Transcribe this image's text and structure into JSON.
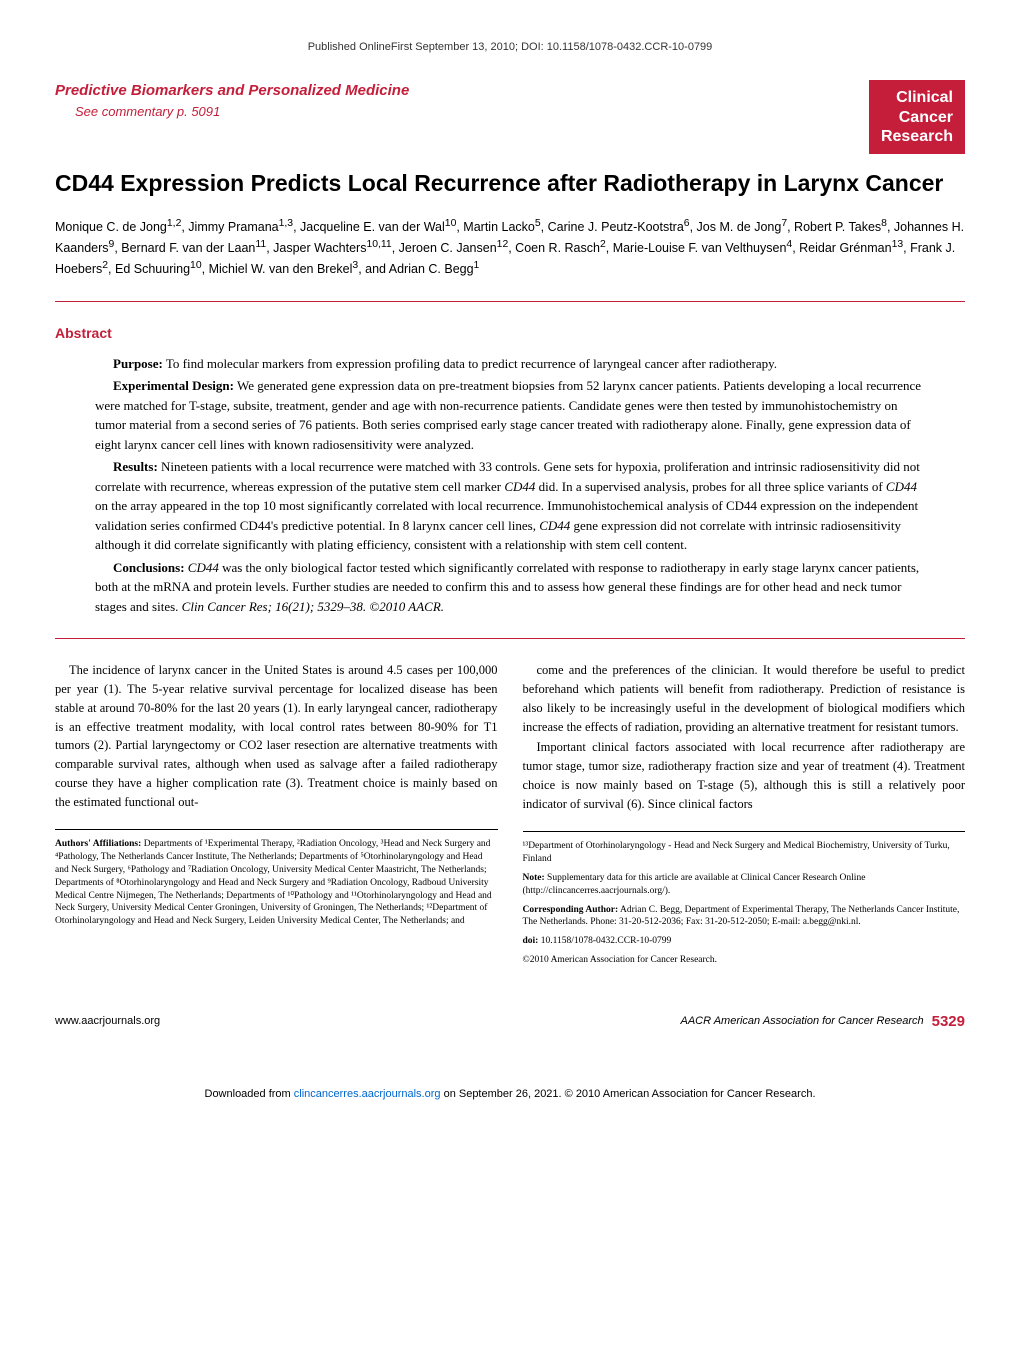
{
  "topline": "Published OnlineFirst September 13, 2010; DOI: 10.1158/1078-0432.CCR-10-0799",
  "section": {
    "label": "Predictive Biomarkers and Personalized Medicine",
    "commentary": "See commentary p. 5091"
  },
  "badge": {
    "l1": "Clinical",
    "l2": "Cancer",
    "l3": "Research"
  },
  "title": "CD44 Expression Predicts Local Recurrence after Radiotherapy in Larynx Cancer",
  "authors_html": "Monique C. de Jong<sup>1,2</sup>, Jimmy Pramana<sup>1,3</sup>, Jacqueline E. van der Wal<sup>10</sup>, Martin Lacko<sup>5</sup>, Carine J. Peutz-Kootstra<sup>6</sup>, Jos M. de Jong<sup>7</sup>, Robert P. Takes<sup>8</sup>, Johannes H. Kaanders<sup>9</sup>, Bernard F. van der Laan<sup>11</sup>, Jasper Wachters<sup>10,11</sup>, Jeroen C. Jansen<sup>12</sup>, Coen R. Rasch<sup>2</sup>, Marie-Louise F. van Velthuysen<sup>4</sup>, Reidar Grénman<sup>13</sup>, Frank J. Hoebers<sup>2</sup>, Ed Schuuring<sup>10</sup>, Michiel W. van den Brekel<sup>3</sup>, and Adrian C. Begg<sup>1</sup>",
  "abstract": {
    "label": "Abstract",
    "purpose_lbl": "Purpose:",
    "purpose": " To find molecular markers from expression profiling data to predict recurrence of laryngeal cancer after radiotherapy.",
    "design_lbl": "Experimental Design:",
    "design": " We generated gene expression data on pre-treatment biopsies from 52 larynx cancer patients. Patients developing a local recurrence were matched for T-stage, subsite, treatment, gender and age with non-recurrence patients. Candidate genes were then tested by immunohistochemistry on tumor material from a second series of 76 patients. Both series comprised early stage cancer treated with radiotherapy alone. Finally, gene expression data of eight larynx cancer cell lines with known radiosensitivity were analyzed.",
    "results_lbl": "Results:",
    "results_a": " Nineteen patients with a local recurrence were matched with 33 controls. Gene sets for hypoxia, proliferation and intrinsic radiosensitivity did not correlate with recurrence, whereas expression of the putative stem cell marker ",
    "cd44_1": "CD44",
    "results_b": " did. In a supervised analysis, probes for all three splice variants of ",
    "cd44_2": "CD44",
    "results_c": " on the array appeared in the top 10 most significantly correlated with local recurrence. Immunohistochemical analysis of CD44 expression on the independent validation series confirmed CD44's predictive potential. In 8 larynx cancer cell lines, ",
    "cd44_3": "CD44",
    "results_d": " gene expression did not correlate with intrinsic radiosensitivity although it did correlate significantly with plating efficiency, consistent with a relationship with stem cell content.",
    "concl_lbl": "Conclusions:",
    "cd44_4": "CD44",
    "concl": " was the only biological factor tested which significantly correlated with response to radiotherapy in early stage larynx cancer patients, both at the mRNA and protein levels. Further studies are needed to confirm this and to assess how general these findings are for other head and neck tumor stages and sites. ",
    "citation": "Clin Cancer Res; 16(21); 5329–38. ©2010 AACR."
  },
  "body": {
    "left_p1": "The incidence of larynx cancer in the United States is around 4.5 cases per 100,000 per year (1). The 5-year relative survival percentage for localized disease has been stable at around 70-80% for the last 20 years (1). In early laryngeal cancer, radiotherapy is an effective treatment modality, with local control rates between 80-90% for T1 tumors (2). Partial laryngectomy or CO2 laser resection are alternative treatments with comparable survival rates, although when used as salvage after a failed radiotherapy course they have a higher complication rate (3). Treatment choice is mainly based on the estimated functional out-",
    "right_p1": "come and the preferences of the clinician. It would therefore be useful to predict beforehand which patients will benefit from radiotherapy. Prediction of resistance is also likely to be increasingly useful in the development of biological modifiers which increase the effects of radiation, providing an alternative treatment for resistant tumors.",
    "right_p2": "Important clinical factors associated with local recurrence after radiotherapy are tumor stage, tumor size, radiotherapy fraction size and year of treatment (4). Treatment choice is now mainly based on T-stage (5), although this is still a relatively poor indicator of survival (6). Since clinical factors"
  },
  "affiliations": {
    "left_lbl": "Authors' Affiliations:",
    "left": " Departments of ¹Experimental Therapy, ²Radiation Oncology, ³Head and Neck Surgery and ⁴Pathology, The Netherlands Cancer Institute, The Netherlands; Departments of ⁵Otorhinolaryngology and Head and Neck Surgery, ⁶Pathology and ⁷Radiation Oncology, University Medical Center Maastricht, The Netherlands; Departments of ⁸Otorhinolaryngology and Head and Neck Surgery and ⁹Radiation Oncology, Radboud University Medical Centre Nijmegen, The Netherlands; Departments of ¹⁰Pathology and ¹¹Otorhinolaryngology and Head and Neck Surgery, University Medical Center Groningen, University of Groningen, The Netherlands; ¹²Department of Otorhinolaryngology and Head and Neck Surgery, Leiden University Medical Center, The Netherlands; and",
    "right_1": "¹³Department of Otorhinolaryngology - Head and Neck Surgery and Medical Biochemistry, University of Turku, Finland",
    "right_2_lbl": "Note:",
    "right_2": " Supplementary data for this article are available at Clinical Cancer Research Online (http://clincancerres.aacrjournals.org/).",
    "right_3_lbl": "Corresponding Author:",
    "right_3": " Adrian C. Begg, Department of Experimental Therapy, The Netherlands Cancer Institute, The Netherlands. Phone: 31-20-512-2036; Fax: 31-20-512-2050; E-mail: a.begg@nki.nl.",
    "right_4_lbl": "doi:",
    "right_4": " 10.1158/1078-0432.CCR-10-0799",
    "right_5": "©2010 American Association for Cancer Research."
  },
  "footer": {
    "left": "www.aacrjournals.org",
    "logo": "AACR American Association for Cancer Research",
    "pagenum": "5329"
  },
  "download": {
    "pre": "Downloaded from ",
    "link": "clincancerres.aacrjournals.org",
    "post": " on September 26, 2021. © 2010 American Association for Cancer Research."
  },
  "colors": {
    "red": "#c41e3a",
    "link": "#0066cc"
  }
}
